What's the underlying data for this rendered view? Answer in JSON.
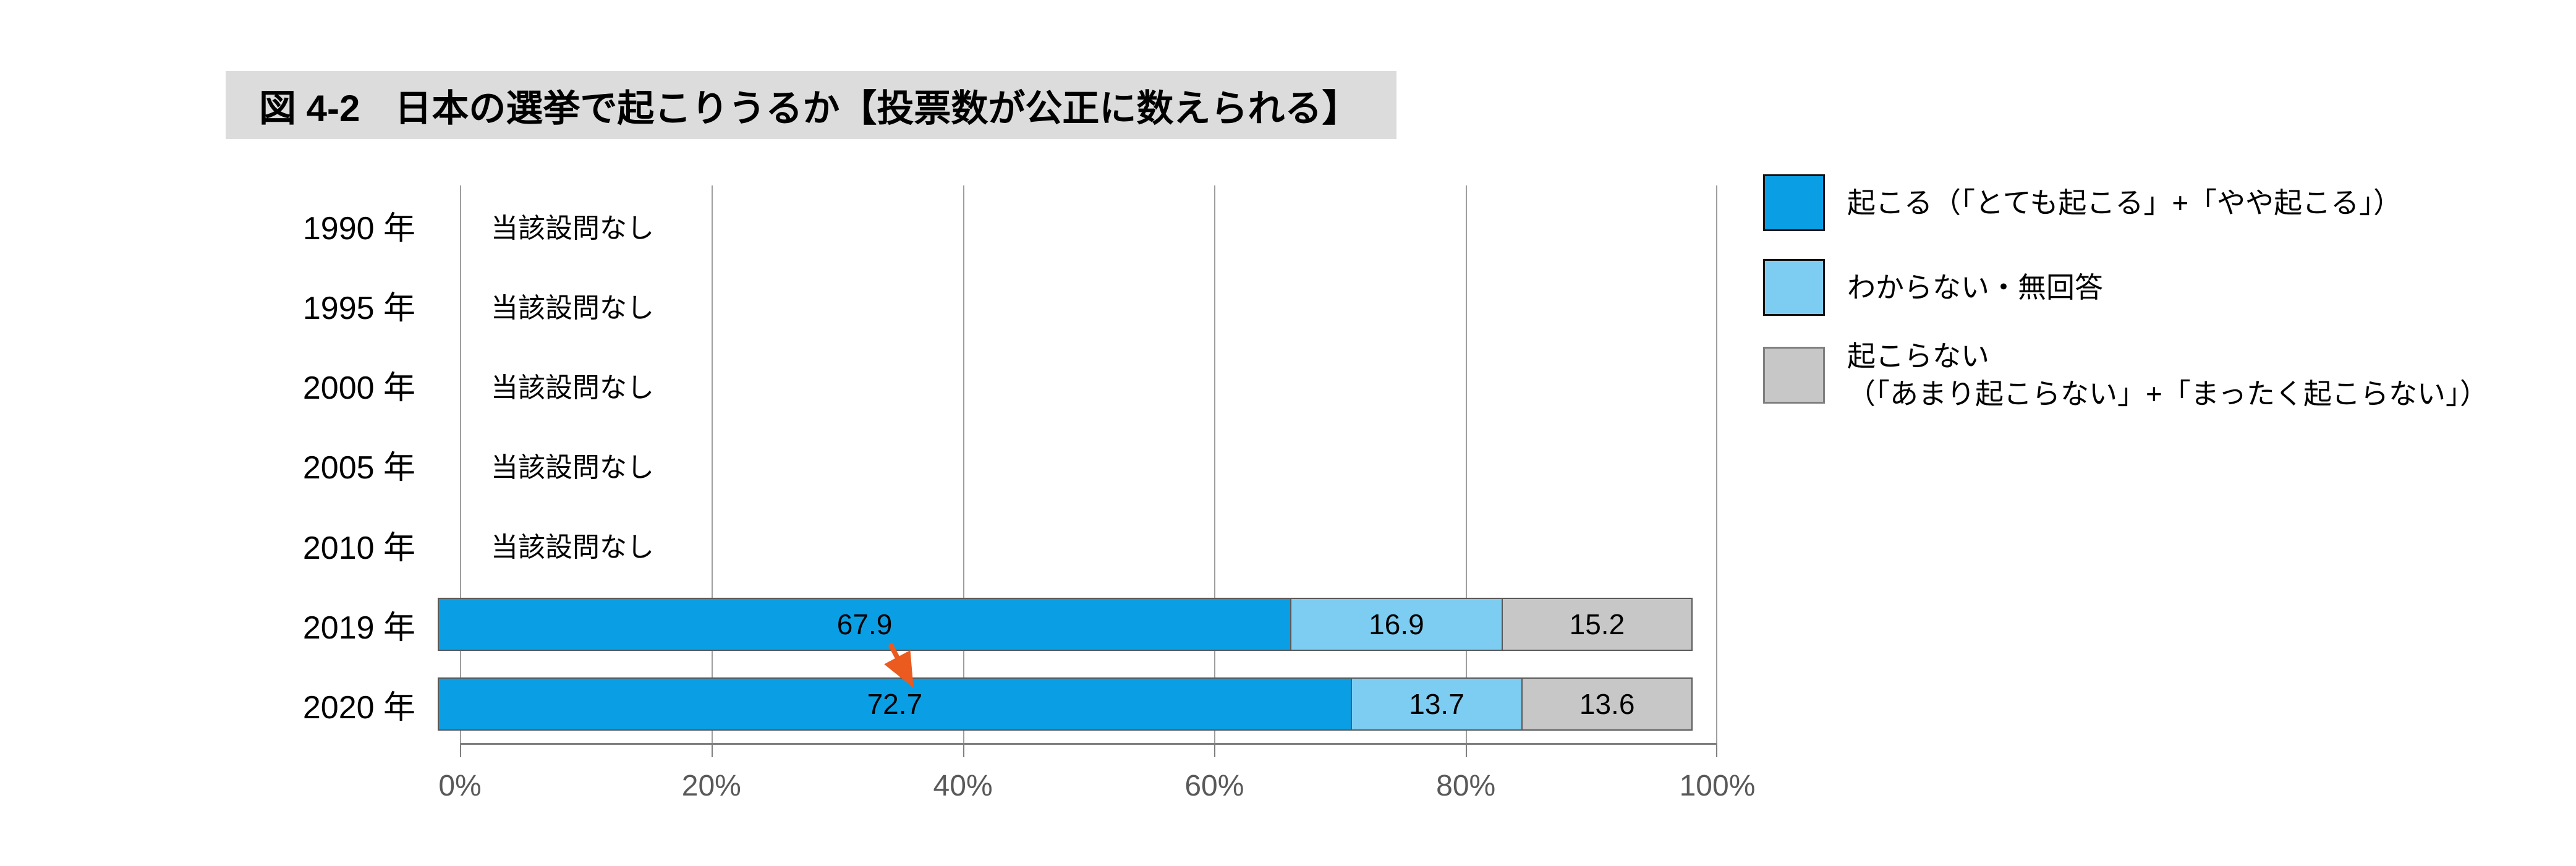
{
  "title": {
    "prefix": "図 4-2",
    "text": "日本の選挙で起こりうるか【投票数が公正に数えられる】"
  },
  "colors": {
    "happen": "#0A9FE4",
    "dontknow": "#7DCDF2",
    "nothappen": "#C7C7C7",
    "arrow": "#EB5A1E",
    "title_bg": "#DCDCDC",
    "axis_text": "#595959",
    "gridline": "#9E9E9E"
  },
  "labels": {
    "no_data": "当該設問なし"
  },
  "legend": {
    "items": [
      {
        "label": "起こる（「とても起こる」+「やや起こる」）",
        "color": "#0A9FE4"
      },
      {
        "label": "わからない・無回答",
        "color": "#7DCDF2"
      },
      {
        "label": "起こらない",
        "label2": "（「あまり起こらない」+「まったく起こらない」）",
        "color": "#C7C7C7"
      }
    ]
  },
  "x_axis": {
    "ticks": [
      "0%",
      "20%",
      "40%",
      "60%",
      "80%",
      "100%"
    ]
  },
  "rows": [
    {
      "year": "1990 年",
      "no_data": true
    },
    {
      "year": "1995 年",
      "no_data": true
    },
    {
      "year": "2000 年",
      "no_data": true
    },
    {
      "year": "2005 年",
      "no_data": true
    },
    {
      "year": "2010 年",
      "no_data": true
    },
    {
      "year": "2019 年",
      "values": [
        67.9,
        16.9,
        15.2
      ]
    },
    {
      "year": "2020 年",
      "values": [
        72.7,
        13.7,
        13.6
      ]
    }
  ],
  "chart_data": {
    "type": "bar",
    "orientation": "horizontal",
    "stacked": true,
    "title": "図 4-2　日本の選挙で起こりうるか【投票数が公正に数えられる】",
    "categories": [
      "1990 年",
      "1995 年",
      "2000 年",
      "2005 年",
      "2010 年",
      "2019 年",
      "2020 年"
    ],
    "series": [
      {
        "name": "起こる（「とても起こる」+「やや起こる」）",
        "color": "#0A9FE4",
        "values": [
          null,
          null,
          null,
          null,
          null,
          67.9,
          72.7
        ]
      },
      {
        "name": "わからない・無回答",
        "color": "#7DCDF2",
        "values": [
          null,
          null,
          null,
          null,
          null,
          16.9,
          13.7
        ]
      },
      {
        "name": "起こらない（「あまり起こらない」+「まったく起こらない」）",
        "color": "#C7C7C7",
        "values": [
          null,
          null,
          null,
          null,
          null,
          15.2,
          13.6
        ]
      }
    ],
    "no_data_text": "当該設問なし",
    "no_data_categories": [
      "1990 年",
      "1995 年",
      "2000 年",
      "2005 年",
      "2010 年"
    ],
    "xlim": [
      0,
      100
    ],
    "x_ticks": [
      "0%",
      "20%",
      "40%",
      "60%",
      "80%",
      "100%"
    ],
    "grid": true,
    "legend_position": "right",
    "annotation": {
      "type": "arrow",
      "from_value": "2019: 67.9",
      "to_value": "2020: 72.7",
      "color": "#EB5A1E"
    }
  }
}
